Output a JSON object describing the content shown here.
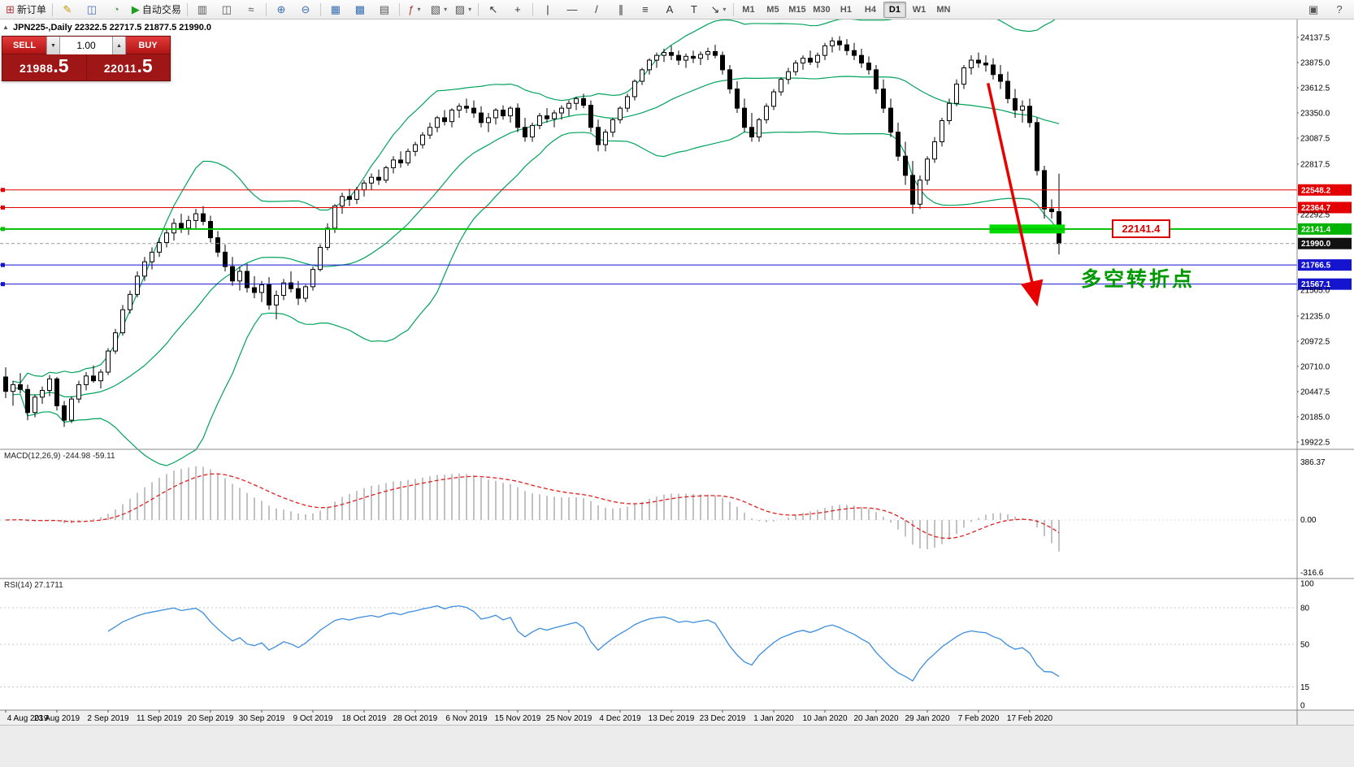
{
  "toolbar": {
    "buttons_left": [
      {
        "name": "new-order-button",
        "glyph": "⊞",
        "color": "#b03a3a",
        "label": "新订单"
      },
      {
        "sep": true
      },
      {
        "name": "metaeditor-icon",
        "glyph": "✎",
        "color": "#c79810"
      },
      {
        "name": "market-watch-icon",
        "glyph": "◫",
        "color": "#4a6fb5"
      },
      {
        "name": "strategy-tester-icon",
        "glyph": "◔",
        "color": "#4a9f4a"
      },
      {
        "name": "autotrading-button",
        "glyph": "▶",
        "color": "#1e9e1e",
        "label": "自动交易"
      },
      {
        "sep": true
      },
      {
        "name": "bar-chart-icon",
        "glyph": "▥",
        "color": "#555555"
      },
      {
        "name": "candlestick-chart-icon",
        "glyph": "◫",
        "color": "#555555"
      },
      {
        "name": "line-chart-icon",
        "glyph": "≈",
        "color": "#555555"
      },
      {
        "sep": true
      },
      {
        "name": "zoom-in-icon",
        "glyph": "⊕",
        "color": "#3a6fb0"
      },
      {
        "name": "zoom-out-icon",
        "glyph": "⊖",
        "color": "#3a6fb0"
      },
      {
        "sep": true
      },
      {
        "name": "tile-windows-icon",
        "glyph": "▦",
        "color": "#3a6fb0"
      },
      {
        "name": "cascade-windows-icon",
        "glyph": "▩",
        "color": "#3a6fb0"
      },
      {
        "name": "grid-icon",
        "glyph": "▤",
        "color": "#555555"
      },
      {
        "sep": true
      },
      {
        "name": "indicators-icon",
        "glyph": "ƒ",
        "color": "#b03a3a",
        "dropdown": true
      },
      {
        "name": "periods-icon",
        "glyph": "▧",
        "color": "#555555",
        "dropdown": true
      },
      {
        "name": "templates-icon",
        "glyph": "▨",
        "color": "#555555",
        "dropdown": true
      },
      {
        "sep": true
      },
      {
        "name": "cursor-icon",
        "glyph": "↖",
        "color": "#333333"
      },
      {
        "name": "crosshair-icon",
        "glyph": "+",
        "color": "#333333"
      },
      {
        "sep": true
      },
      {
        "name": "vertical-line-icon",
        "glyph": "|",
        "color": "#333333"
      },
      {
        "name": "horizontal-line-icon",
        "glyph": "—",
        "color": "#333333"
      },
      {
        "name": "trendline-icon",
        "glyph": "/",
        "color": "#333333"
      },
      {
        "name": "channel-icon",
        "glyph": "∥",
        "color": "#333333"
      },
      {
        "name": "fibonacci-icon",
        "glyph": "≡",
        "color": "#333333"
      },
      {
        "name": "text-icon",
        "glyph": "A",
        "color": "#333333"
      },
      {
        "name": "label-icon",
        "glyph": "T",
        "color": "#333333"
      },
      {
        "name": "arrows-icon",
        "glyph": "↘",
        "color": "#333333",
        "dropdown": true
      },
      {
        "sep": true
      }
    ],
    "timeframes": [
      "M1",
      "M5",
      "M15",
      "M30",
      "H1",
      "H4",
      "D1",
      "W1",
      "MN"
    ],
    "active_timeframe": "D1",
    "buttons_right": [
      {
        "name": "docking-icon",
        "glyph": "▣",
        "color": "#555555"
      },
      {
        "name": "help-icon",
        "glyph": "?",
        "color": "#555555"
      }
    ]
  },
  "chart": {
    "collapse_icon": "▲",
    "symbol_info": "JPN225-,Daily 22322.5 22717.5 21877.5 21990.0",
    "trade_panel": {
      "sell_label": "SELL",
      "buy_label": "BUY",
      "volume": "1.00",
      "spin_down": "▼",
      "spin_up": "▲",
      "sell_price": "21988",
      "sell_frac": ".5",
      "buy_price": "22011",
      "buy_frac": ".5",
      "panel_color": "#9e1616",
      "button_color": "#cc2020"
    },
    "annotations": {
      "price_box": "22141.4",
      "price_box_color": "#dd0000",
      "turning_point": "多空转折点",
      "turning_point_color": "#009900"
    }
  },
  "macd": {
    "label": "MACD(12,26,9) -244.98 -59.11",
    "axis": [
      "386.37",
      "0.00",
      "-316.6"
    ]
  },
  "rsi": {
    "label": "RSI(14) 27.1711",
    "axis": [
      "100",
      "80",
      "50",
      "15",
      "0"
    ],
    "levels": [
      80,
      50,
      15
    ]
  },
  "chart_data": {
    "type": "candlestick",
    "title": "JPN225-,Daily",
    "current_bar": {
      "open": 22322.5,
      "high": 22717.5,
      "low": 21877.5,
      "close": 21990.0
    },
    "price_ticks": [
      "24137.5",
      "23875.0",
      "23612.5",
      "23350.0",
      "23087.5",
      "22817.5",
      "22292.5",
      "21505.0",
      "21235.0",
      "20972.5",
      "20710.0",
      "20447.5",
      "20185.0",
      "19922.5"
    ],
    "levels": [
      {
        "price": 22548.2,
        "label": "22548.2",
        "color": "#e40000",
        "style": "solid",
        "width": 1,
        "handle": true,
        "tag_bg": "#e40000"
      },
      {
        "price": 22364.7,
        "label": "22364.7",
        "color": "#e40000",
        "style": "solid",
        "width": 1,
        "handle": true,
        "tag_bg": "#e40000"
      },
      {
        "price": 22141.4,
        "label": "22141.4",
        "color": "#00c000",
        "style": "solid",
        "width": 2,
        "handle": true,
        "tag_bg": "#00b300"
      },
      {
        "price": 21990.0,
        "label": "21990.0",
        "color": "#9a9a9a",
        "style": "dash",
        "width": 1,
        "handle": false,
        "tag_bg": "#111111"
      },
      {
        "price": 21766.5,
        "label": "21766.5",
        "color": "#1515cf",
        "style": "solid",
        "width": 1,
        "handle": true,
        "tag_bg": "#1515cf"
      },
      {
        "price": 21567.1,
        "label": "21567.1",
        "color": "#1515cf",
        "style": "solid",
        "width": 1,
        "handle": true,
        "tag_bg": "#1515cf"
      }
    ],
    "x_labels": [
      "4 Aug 2019",
      "23 Aug 2019",
      "2 Sep 2019",
      "11 Sep 2019",
      "20 Sep 2019",
      "30 Sep 2019",
      "9 Oct 2019",
      "18 Oct 2019",
      "28 Oct 2019",
      "6 Nov 2019",
      "15 Nov 2019",
      "25 Nov 2019",
      "4 Dec 2019",
      "13 Dec 2019",
      "23 Dec 2019",
      "1 Jan 2020",
      "10 Jan 2020",
      "20 Jan 2020",
      "29 Jan 2020",
      "7 Feb 2020",
      "17 Feb 2020"
    ],
    "x_label_indices": [
      0,
      7,
      14,
      21,
      28,
      35,
      42,
      49,
      56,
      63,
      70,
      77,
      84,
      91,
      98,
      105,
      112,
      119,
      126,
      133,
      140
    ],
    "indicators": {
      "bollinger": {
        "period": 20,
        "deviation": 2,
        "color": "#00a35c"
      },
      "macd": {
        "fast": 12,
        "slow": 26,
        "signal": 9,
        "current_main": -244.98,
        "current_signal": -59.11,
        "axis_values": [
          386.37,
          0.0,
          -316.6
        ],
        "histogram_color": "#c2c2c2",
        "signal_color": "#e02020"
      },
      "rsi": {
        "period": 14,
        "current": 27.1711,
        "axis_values": [
          100,
          80,
          50,
          15,
          0
        ],
        "line_color": "#3c8ddc"
      }
    },
    "objects": {
      "highlight_bar": {
        "i1": 134.5,
        "i2": 144.8,
        "price": 22141.4,
        "color": "#00dc00"
      },
      "arrow": {
        "from_i": 134.3,
        "from_price": 23660,
        "to_i": 140.8,
        "to_price": 21420,
        "color": "#e80000"
      }
    },
    "candles": [
      [
        20600,
        20700,
        20380,
        20450
      ],
      [
        20450,
        20560,
        20300,
        20520
      ],
      [
        20520,
        20640,
        20430,
        20470
      ],
      [
        20470,
        20520,
        20150,
        20230
      ],
      [
        20230,
        20420,
        20180,
        20390
      ],
      [
        20390,
        20500,
        20320,
        20460
      ],
      [
        20460,
        20620,
        20400,
        20580
      ],
      [
        20580,
        20600,
        20250,
        20300
      ],
      [
        20300,
        20350,
        20080,
        20150
      ],
      [
        20150,
        20400,
        20120,
        20370
      ],
      [
        20370,
        20560,
        20330,
        20520
      ],
      [
        20520,
        20650,
        20460,
        20610
      ],
      [
        20610,
        20720,
        20540,
        20560
      ],
      [
        20560,
        20680,
        20480,
        20650
      ],
      [
        20650,
        20900,
        20620,
        20870
      ],
      [
        20870,
        21100,
        20840,
        21060
      ],
      [
        21060,
        21350,
        21030,
        21300
      ],
      [
        21300,
        21500,
        21260,
        21460
      ],
      [
        21460,
        21700,
        21430,
        21650
      ],
      [
        21650,
        21850,
        21600,
        21800
      ],
      [
        21800,
        21950,
        21720,
        21900
      ],
      [
        21900,
        22050,
        21850,
        22000
      ],
      [
        22000,
        22150,
        21950,
        22100
      ],
      [
        22100,
        22250,
        22020,
        22200
      ],
      [
        22200,
        22300,
        22100,
        22150
      ],
      [
        22150,
        22280,
        22080,
        22230
      ],
      [
        22230,
        22350,
        22150,
        22300
      ],
      [
        22300,
        22380,
        22180,
        22220
      ],
      [
        22220,
        22280,
        22000,
        22050
      ],
      [
        22050,
        22120,
        21850,
        21900
      ],
      [
        21900,
        21980,
        21700,
        21750
      ],
      [
        21750,
        21850,
        21550,
        21600
      ],
      [
        21600,
        21750,
        21500,
        21700
      ],
      [
        21700,
        21780,
        21480,
        21530
      ],
      [
        21530,
        21650,
        21420,
        21480
      ],
      [
        21480,
        21600,
        21380,
        21560
      ],
      [
        21560,
        21640,
        21300,
        21350
      ],
      [
        21350,
        21500,
        21200,
        21450
      ],
      [
        21450,
        21620,
        21400,
        21580
      ],
      [
        21580,
        21700,
        21480,
        21520
      ],
      [
        21520,
        21600,
        21350,
        21420
      ],
      [
        21420,
        21560,
        21380,
        21540
      ],
      [
        21540,
        21750,
        21500,
        21720
      ],
      [
        21720,
        21980,
        21700,
        21950
      ],
      [
        21950,
        22200,
        21920,
        22150
      ],
      [
        22150,
        22400,
        22100,
        22380
      ],
      [
        22380,
        22520,
        22300,
        22480
      ],
      [
        22480,
        22560,
        22380,
        22450
      ],
      [
        22450,
        22580,
        22400,
        22550
      ],
      [
        22550,
        22650,
        22480,
        22620
      ],
      [
        22620,
        22720,
        22550,
        22680
      ],
      [
        22680,
        22760,
        22600,
        22650
      ],
      [
        22650,
        22800,
        22620,
        22780
      ],
      [
        22780,
        22900,
        22720,
        22860
      ],
      [
        22860,
        22950,
        22780,
        22830
      ],
      [
        22830,
        22980,
        22800,
        22950
      ],
      [
        22950,
        23050,
        22900,
        23020
      ],
      [
        23020,
        23150,
        22980,
        23120
      ],
      [
        23120,
        23250,
        23080,
        23200
      ],
      [
        23200,
        23320,
        23150,
        23300
      ],
      [
        23300,
        23380,
        23220,
        23260
      ],
      [
        23260,
        23400,
        23200,
        23380
      ],
      [
        23380,
        23450,
        23300,
        23420
      ],
      [
        23420,
        23500,
        23350,
        23400
      ],
      [
        23400,
        23480,
        23300,
        23350
      ],
      [
        23350,
        23420,
        23200,
        23250
      ],
      [
        23250,
        23350,
        23150,
        23300
      ],
      [
        23300,
        23400,
        23230,
        23380
      ],
      [
        23380,
        23430,
        23280,
        23320
      ],
      [
        23320,
        23420,
        23250,
        23400
      ],
      [
        23400,
        23450,
        23150,
        23200
      ],
      [
        23200,
        23300,
        23050,
        23100
      ],
      [
        23100,
        23250,
        23050,
        23220
      ],
      [
        23220,
        23350,
        23180,
        23320
      ],
      [
        23320,
        23400,
        23250,
        23290
      ],
      [
        23290,
        23380,
        23200,
        23350
      ],
      [
        23350,
        23430,
        23280,
        23400
      ],
      [
        23400,
        23480,
        23320,
        23450
      ],
      [
        23450,
        23520,
        23380,
        23500
      ],
      [
        23500,
        23550,
        23400,
        23430
      ],
      [
        23430,
        23480,
        23150,
        23200
      ],
      [
        23200,
        23280,
        22950,
        23020
      ],
      [
        23020,
        23180,
        22950,
        23150
      ],
      [
        23150,
        23300,
        23100,
        23280
      ],
      [
        23280,
        23420,
        23240,
        23400
      ],
      [
        23400,
        23550,
        23360,
        23520
      ],
      [
        23520,
        23700,
        23480,
        23680
      ],
      [
        23680,
        23820,
        23640,
        23800
      ],
      [
        23800,
        23920,
        23750,
        23900
      ],
      [
        23900,
        23980,
        23820,
        23950
      ],
      [
        23950,
        24020,
        23880,
        23980
      ],
      [
        23980,
        24050,
        23900,
        23950
      ],
      [
        23950,
        24000,
        23850,
        23900
      ],
      [
        23900,
        23970,
        23820,
        23940
      ],
      [
        23940,
        24000,
        23870,
        23920
      ],
      [
        23920,
        23990,
        23850,
        23960
      ],
      [
        23960,
        24030,
        23900,
        23990
      ],
      [
        23990,
        24060,
        23920,
        23950
      ],
      [
        23950,
        23990,
        23750,
        23800
      ],
      [
        23800,
        23850,
        23550,
        23600
      ],
      [
        23600,
        23680,
        23350,
        23400
      ],
      [
        23400,
        23500,
        23150,
        23200
      ],
      [
        23200,
        23350,
        23050,
        23100
      ],
      [
        23100,
        23300,
        23050,
        23280
      ],
      [
        23280,
        23450,
        23240,
        23420
      ],
      [
        23420,
        23600,
        23380,
        23570
      ],
      [
        23570,
        23720,
        23530,
        23700
      ],
      [
        23700,
        23820,
        23650,
        23780
      ],
      [
        23780,
        23900,
        23740,
        23870
      ],
      [
        23870,
        23950,
        23800,
        23920
      ],
      [
        23920,
        24000,
        23850,
        23880
      ],
      [
        23880,
        23980,
        23820,
        23950
      ],
      [
        23950,
        24080,
        23900,
        24050
      ],
      [
        24050,
        24140,
        23980,
        24100
      ],
      [
        24100,
        24150,
        24000,
        24060
      ],
      [
        24060,
        24120,
        23950,
        24000
      ],
      [
        24000,
        24080,
        23900,
        23950
      ],
      [
        23950,
        24020,
        23820,
        23870
      ],
      [
        23870,
        23940,
        23750,
        23800
      ],
      [
        23800,
        23850,
        23550,
        23600
      ],
      [
        23600,
        23700,
        23350,
        23400
      ],
      [
        23400,
        23500,
        23100,
        23150
      ],
      [
        23150,
        23250,
        22850,
        22900
      ],
      [
        22900,
        23050,
        22600,
        22700
      ],
      [
        22700,
        22850,
        22300,
        22400
      ],
      [
        22400,
        22700,
        22350,
        22650
      ],
      [
        22650,
        22900,
        22600,
        22870
      ],
      [
        22870,
        23100,
        22830,
        23050
      ],
      [
        23050,
        23300,
        23000,
        23270
      ],
      [
        23270,
        23500,
        23230,
        23450
      ],
      [
        23450,
        23700,
        23420,
        23650
      ],
      [
        23650,
        23850,
        23600,
        23820
      ],
      [
        23820,
        23950,
        23750,
        23900
      ],
      [
        23900,
        23980,
        23820,
        23870
      ],
      [
        23870,
        23950,
        23780,
        23850
      ],
      [
        23850,
        23920,
        23700,
        23750
      ],
      [
        23750,
        23850,
        23600,
        23680
      ],
      [
        23680,
        23780,
        23450,
        23500
      ],
      [
        23500,
        23600,
        23300,
        23380
      ],
      [
        23380,
        23480,
        23250,
        23420
      ],
      [
        23420,
        23500,
        23200,
        23250
      ],
      [
        23250,
        23300,
        22700,
        22750
      ],
      [
        22750,
        22800,
        22250,
        22350
      ],
      [
        22350,
        22450,
        22250,
        22322
      ],
      [
        22322,
        22718,
        21878,
        21990
      ]
    ]
  }
}
